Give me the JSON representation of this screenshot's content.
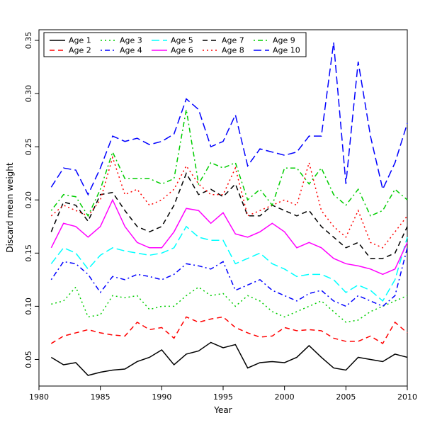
{
  "chart_data": {
    "type": "line",
    "title": "",
    "xlabel": "Year",
    "ylabel": "Discard mean weight",
    "grid": false,
    "legend_position": "top-left-inside",
    "xlim": [
      1980,
      2010
    ],
    "ylim": [
      0.025,
      0.36
    ],
    "x_ticks": [
      1980,
      1985,
      1990,
      1995,
      2000,
      2005,
      2010
    ],
    "x_tick_labels": [
      "1980",
      "1985",
      "1990",
      "1995",
      "2000",
      "2005",
      "2010"
    ],
    "y_ticks": [
      0.05,
      0.1,
      0.15,
      0.2,
      0.25,
      0.3,
      0.35
    ],
    "y_tick_labels": [
      "0.05",
      "0.10",
      "0.15",
      "0.20",
      "0.25",
      "0.30",
      "0.35"
    ],
    "x": [
      1981,
      1982,
      1983,
      1984,
      1985,
      1986,
      1987,
      1988,
      1989,
      1990,
      1991,
      1992,
      1993,
      1994,
      1995,
      1996,
      1997,
      1998,
      1999,
      2000,
      2001,
      2002,
      2003,
      2004,
      2005,
      2006,
      2007,
      2008,
      2009,
      2010
    ],
    "series": [
      {
        "name": "Age 1",
        "color": "#000000",
        "linetype": "solid",
        "values": [
          0.052,
          0.045,
          0.047,
          0.035,
          0.038,
          0.04,
          0.041,
          0.048,
          0.052,
          0.059,
          0.045,
          0.055,
          0.058,
          0.066,
          0.061,
          0.064,
          0.042,
          0.047,
          0.048,
          0.047,
          0.052,
          0.063,
          0.052,
          0.042,
          0.04,
          0.052,
          0.05,
          0.048,
          0.055,
          0.052
        ]
      },
      {
        "name": "Age 2",
        "color": "#FF0000",
        "linetype": "dashed",
        "values": [
          0.065,
          0.072,
          0.075,
          0.078,
          0.075,
          0.073,
          0.072,
          0.085,
          0.078,
          0.08,
          0.07,
          0.09,
          0.085,
          0.088,
          0.09,
          0.08,
          0.075,
          0.071,
          0.072,
          0.08,
          0.077,
          0.078,
          0.077,
          0.07,
          0.067,
          0.067,
          0.072,
          0.065,
          0.085,
          0.075
        ]
      },
      {
        "name": "Age 3",
        "color": "#00CD00",
        "linetype": "dotted",
        "values": [
          0.102,
          0.105,
          0.118,
          0.09,
          0.092,
          0.11,
          0.108,
          0.11,
          0.097,
          0.1,
          0.1,
          0.11,
          0.118,
          0.11,
          0.112,
          0.1,
          0.11,
          0.105,
          0.095,
          0.09,
          0.095,
          0.1,
          0.105,
          0.095,
          0.085,
          0.087,
          0.095,
          0.1,
          0.105,
          0.11
        ]
      },
      {
        "name": "Age 4",
        "color": "#0000FF",
        "linetype": "dotdash",
        "values": [
          0.125,
          0.142,
          0.14,
          0.13,
          0.113,
          0.128,
          0.125,
          0.13,
          0.128,
          0.125,
          0.13,
          0.14,
          0.138,
          0.135,
          0.142,
          0.115,
          0.12,
          0.125,
          0.115,
          0.11,
          0.105,
          0.112,
          0.115,
          0.105,
          0.1,
          0.11,
          0.105,
          0.1,
          0.11,
          0.155
        ]
      },
      {
        "name": "Age 5",
        "color": "#00FFFF",
        "linetype": "longdash",
        "values": [
          0.14,
          0.155,
          0.15,
          0.135,
          0.148,
          0.155,
          0.152,
          0.15,
          0.148,
          0.15,
          0.155,
          0.175,
          0.165,
          0.162,
          0.162,
          0.14,
          0.145,
          0.15,
          0.14,
          0.135,
          0.128,
          0.13,
          0.13,
          0.125,
          0.113,
          0.12,
          0.115,
          0.105,
          0.125,
          0.165
        ]
      },
      {
        "name": "Age 6",
        "color": "#FF00FF",
        "linetype": "solid",
        "values": [
          0.155,
          0.178,
          0.175,
          0.165,
          0.175,
          0.2,
          0.175,
          0.16,
          0.155,
          0.155,
          0.17,
          0.192,
          0.19,
          0.178,
          0.188,
          0.168,
          0.165,
          0.17,
          0.178,
          0.17,
          0.155,
          0.16,
          0.155,
          0.145,
          0.14,
          0.138,
          0.135,
          0.13,
          0.135,
          0.16
        ]
      },
      {
        "name": "Age 7",
        "color": "#000000",
        "linetype": "dashed",
        "values": [
          0.17,
          0.198,
          0.195,
          0.18,
          0.205,
          0.207,
          0.19,
          0.175,
          0.17,
          0.175,
          0.195,
          0.225,
          0.205,
          0.21,
          0.203,
          0.215,
          0.185,
          0.185,
          0.195,
          0.19,
          0.185,
          0.19,
          0.175,
          0.165,
          0.155,
          0.16,
          0.145,
          0.145,
          0.15,
          0.175
        ]
      },
      {
        "name": "Age 8",
        "color": "#FF0000",
        "linetype": "dotted",
        "values": [
          0.185,
          0.195,
          0.19,
          0.185,
          0.2,
          0.24,
          0.205,
          0.21,
          0.195,
          0.2,
          0.21,
          0.232,
          0.215,
          0.205,
          0.205,
          0.23,
          0.185,
          0.19,
          0.195,
          0.2,
          0.195,
          0.235,
          0.19,
          0.175,
          0.165,
          0.19,
          0.16,
          0.155,
          0.17,
          0.185
        ]
      },
      {
        "name": "Age 9",
        "color": "#00CD00",
        "linetype": "dotdash",
        "values": [
          0.19,
          0.205,
          0.203,
          0.185,
          0.21,
          0.245,
          0.22,
          0.22,
          0.22,
          0.215,
          0.22,
          0.285,
          0.215,
          0.235,
          0.23,
          0.235,
          0.2,
          0.21,
          0.195,
          0.23,
          0.23,
          0.215,
          0.23,
          0.205,
          0.195,
          0.21,
          0.185,
          0.19,
          0.21,
          0.2
        ]
      },
      {
        "name": "Age 10",
        "color": "#0000FF",
        "linetype": "longdash",
        "values": [
          0.212,
          0.23,
          0.228,
          0.205,
          0.23,
          0.26,
          0.255,
          0.258,
          0.252,
          0.255,
          0.262,
          0.295,
          0.285,
          0.25,
          0.255,
          0.28,
          0.232,
          0.248,
          0.245,
          0.242,
          0.245,
          0.26,
          0.26,
          0.348,
          0.215,
          0.33,
          0.26,
          0.21,
          0.235,
          0.272
        ]
      }
    ]
  }
}
